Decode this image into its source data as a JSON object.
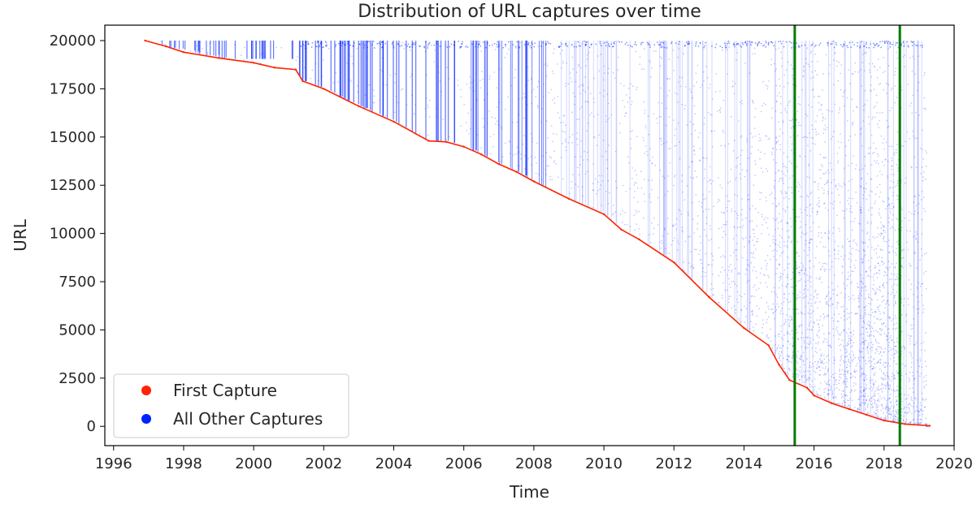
{
  "chart_data": {
    "type": "scatter",
    "title": "Distribution of URL captures over time",
    "xlabel": "Time",
    "ylabel": "URL",
    "xlim": [
      1995.75,
      2020.0
    ],
    "ylim": [
      -1000,
      20800
    ],
    "x_ticks": [
      1996,
      1998,
      2000,
      2002,
      2004,
      2006,
      2008,
      2010,
      2012,
      2014,
      2016,
      2018,
      2020
    ],
    "y_ticks": [
      0,
      2500,
      5000,
      7500,
      10000,
      12500,
      15000,
      17500,
      20000
    ],
    "grid": false,
    "legend_position": "lower-left",
    "series": [
      {
        "name": "First Capture",
        "color": "#ff2200",
        "points": [
          [
            1996.9,
            20000
          ],
          [
            1997.5,
            19700
          ],
          [
            1998.0,
            19400
          ],
          [
            1999.0,
            19100
          ],
          [
            2000.0,
            18850
          ],
          [
            2000.6,
            18600
          ],
          [
            2001.2,
            18500
          ],
          [
            2001.4,
            17900
          ],
          [
            2002.0,
            17500
          ],
          [
            2003.0,
            16600
          ],
          [
            2004.0,
            15800
          ],
          [
            2005.0,
            14800
          ],
          [
            2005.5,
            14750
          ],
          [
            2006.0,
            14500
          ],
          [
            2006.5,
            14100
          ],
          [
            2007.0,
            13600
          ],
          [
            2007.5,
            13200
          ],
          [
            2008.0,
            12700
          ],
          [
            2009.0,
            11800
          ],
          [
            2010.0,
            11000
          ],
          [
            2010.5,
            10200
          ],
          [
            2011.0,
            9700
          ],
          [
            2012.0,
            8500
          ],
          [
            2013.0,
            6700
          ],
          [
            2014.0,
            5100
          ],
          [
            2014.7,
            4200
          ],
          [
            2015.0,
            3200
          ],
          [
            2015.3,
            2400
          ],
          [
            2015.8,
            2000
          ],
          [
            2016.0,
            1600
          ],
          [
            2016.5,
            1200
          ],
          [
            2017.0,
            900
          ],
          [
            2017.5,
            600
          ],
          [
            2018.0,
            300
          ],
          [
            2018.6,
            120
          ],
          [
            2019.3,
            30
          ]
        ]
      },
      {
        "name": "All Other Captures",
        "color": "#0022ff"
      }
    ],
    "vertical_lines": [
      {
        "x": 2015.45,
        "color": "#007a00"
      },
      {
        "x": 2018.45,
        "color": "#007a00"
      }
    ]
  }
}
